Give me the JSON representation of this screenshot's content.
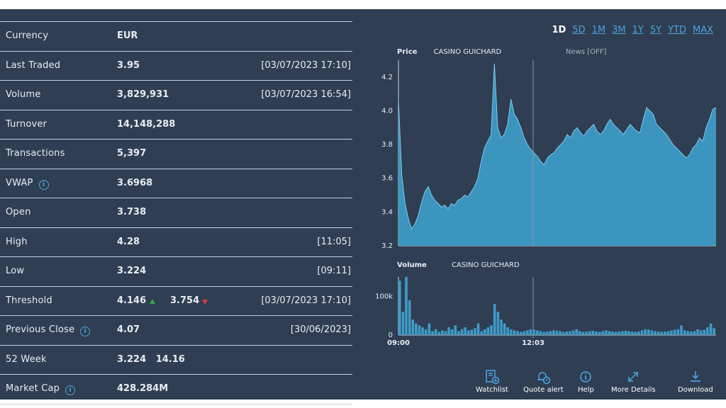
{
  "stats": [
    {
      "label": "Currency",
      "value": "EUR",
      "timestamp": ""
    },
    {
      "label": "Last Traded",
      "value": "3.95",
      "timestamp": "[03/07/2023 17:10]"
    },
    {
      "label": "Volume",
      "value": "3,829,931",
      "timestamp": "[03/07/2023 16:54]"
    },
    {
      "label": "Turnover",
      "value": "14,148,288",
      "timestamp": ""
    },
    {
      "label": "Transactions",
      "value": "5,397",
      "timestamp": ""
    },
    {
      "label": "VWAP",
      "value": "3.6968",
      "timestamp": ""
    },
    {
      "label": "Open",
      "value": "3.738",
      "timestamp": ""
    },
    {
      "label": "High",
      "value": "4.28",
      "timestamp": "[11:05]"
    },
    {
      "label": "Low",
      "value": "3.224",
      "timestamp": "[09:11]"
    },
    {
      "label": "Threshold",
      "value": "4.146",
      "value2": "3.754",
      "timestamp": "[03/07/2023 17:10]"
    },
    {
      "label": "Previous Close",
      "value": "4.07",
      "timestamp": "[30/06/2023]"
    },
    {
      "label": "52 Week",
      "value": "3.224   14.16",
      "timestamp": ""
    },
    {
      "label": "Market Cap",
      "value": "428.284M",
      "timestamp": ""
    }
  ],
  "ranges": [
    "1D",
    "5D",
    "1M",
    "3M",
    "1Y",
    "5Y",
    "YTD",
    "MAX"
  ],
  "active_range": "1D",
  "price_chart": {
    "label": "Price",
    "company": "CASINO GUICHARD",
    "news": "News [OFF]"
  },
  "volume_chart": {
    "label": "Volume",
    "company": "CASINO GUICHARD"
  },
  "actions": {
    "watchlist": "Watchlist",
    "quote_alert": "Quote alert",
    "help": "Help",
    "more_details": "More Details",
    "download": "Download"
  },
  "colors": {
    "panel": "#2f3e52",
    "accent": "#4aa3df",
    "area": "#3e9cc9",
    "up": "#2fa84f",
    "down": "#d73b3b"
  },
  "chart_data": [
    {
      "type": "area",
      "title": "Price",
      "ylim": [
        3.2,
        4.3
      ],
      "yticks": [
        3.2,
        3.4,
        3.6,
        3.8,
        4.0,
        4.2
      ],
      "xlabels": [
        "09:00",
        "12:03"
      ],
      "values": [
        4.07,
        3.62,
        3.45,
        3.36,
        3.3,
        3.33,
        3.38,
        3.46,
        3.52,
        3.55,
        3.5,
        3.47,
        3.45,
        3.43,
        3.44,
        3.42,
        3.45,
        3.44,
        3.47,
        3.48,
        3.5,
        3.49,
        3.52,
        3.55,
        3.6,
        3.7,
        3.78,
        3.82,
        3.86,
        4.28,
        3.9,
        3.84,
        3.86,
        3.92,
        4.07,
        3.98,
        3.95,
        3.9,
        3.84,
        3.8,
        3.77,
        3.75,
        3.73,
        3.7,
        3.68,
        3.72,
        3.74,
        3.75,
        3.78,
        3.8,
        3.82,
        3.86,
        3.84,
        3.88,
        3.9,
        3.87,
        3.85,
        3.88,
        3.9,
        3.92,
        3.88,
        3.86,
        3.88,
        3.92,
        3.95,
        3.92,
        3.9,
        3.88,
        3.86,
        3.89,
        3.92,
        3.9,
        3.88,
        3.87,
        3.95,
        4.02,
        4.0,
        3.98,
        3.92,
        3.9,
        3.88,
        3.86,
        3.83,
        3.8,
        3.78,
        3.76,
        3.74,
        3.72,
        3.74,
        3.78,
        3.8,
        3.84,
        3.82,
        3.9,
        3.95,
        4.01,
        4.02
      ]
    },
    {
      "type": "bar",
      "title": "Volume",
      "ylim": [
        0,
        150000
      ],
      "yticks": [
        0,
        100000
      ],
      "ytick_labels": [
        "0",
        "100k"
      ],
      "xlabels": [
        "09:00",
        "12:03"
      ],
      "values": [
        140000,
        60000,
        150000,
        90000,
        40000,
        30000,
        25000,
        20000,
        15000,
        30000,
        10000,
        15000,
        8000,
        12000,
        10000,
        20000,
        15000,
        25000,
        10000,
        15000,
        20000,
        12000,
        14000,
        18000,
        30000,
        10000,
        15000,
        20000,
        25000,
        80000,
        60000,
        40000,
        30000,
        20000,
        15000,
        12000,
        10000,
        8000,
        10000,
        12000,
        15000,
        14000,
        12000,
        10000,
        8000,
        9000,
        10000,
        12000,
        11000,
        10000,
        8000,
        9000,
        10000,
        12000,
        15000,
        10000,
        8000,
        9000,
        10000,
        11000,
        9000,
        8000,
        10000,
        12000,
        10000,
        9000,
        8000,
        9000,
        10000,
        11000,
        10000,
        9000,
        8000,
        9000,
        12000,
        15000,
        14000,
        12000,
        10000,
        9000,
        8000,
        9000,
        10000,
        12000,
        14000,
        15000,
        25000,
        12000,
        10000,
        9000,
        10000,
        15000,
        12000,
        14000,
        20000,
        30000,
        18000
      ]
    }
  ]
}
